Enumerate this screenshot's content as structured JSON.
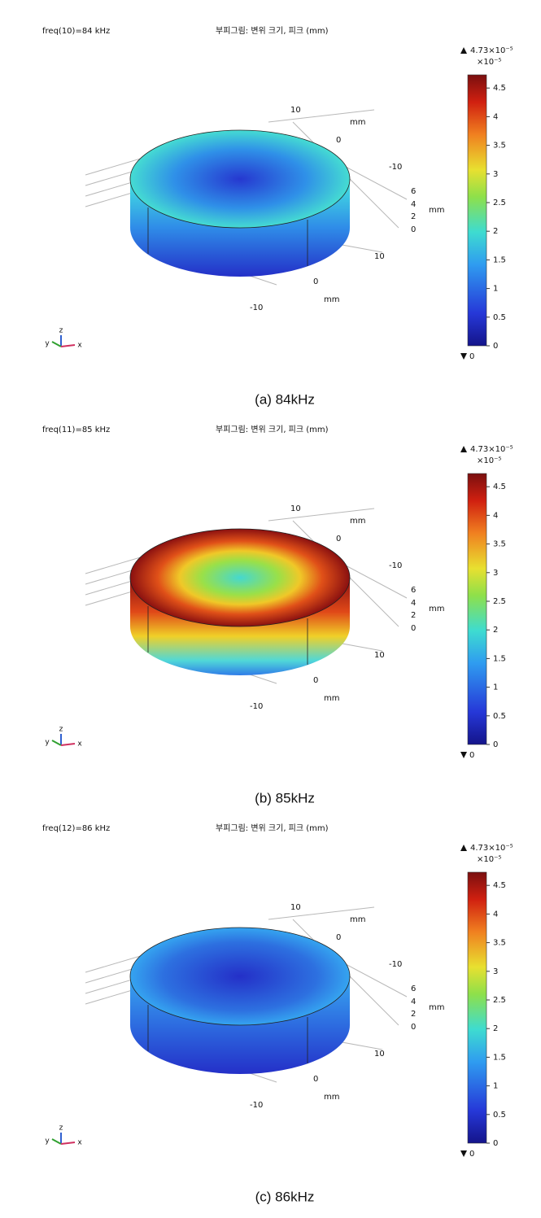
{
  "panels": [
    {
      "label": "freq(10)=84 kHz",
      "title": "부피그림: 변위 크기, 피크 (mm)",
      "max": "4.73×10⁻⁵",
      "scale": "×10⁻⁵",
      "min": "0",
      "colorbar_lim": [
        0,
        4.73
      ],
      "colorbar_ticks": [
        0,
        0.5,
        1,
        1.5,
        2,
        2.5,
        3,
        3.5,
        4,
        4.5
      ],
      "axis_labels": [
        "10",
        "mm",
        "0",
        "-10",
        "6",
        "4",
        "2",
        "0",
        "mm",
        "10",
        "0",
        "mm",
        "-10"
      ],
      "triad": [
        "y",
        "z",
        "x"
      ],
      "caption": "(a) 84kHz"
    },
    {
      "label": "freq(11)=85 kHz",
      "title": "부피그림: 변위 크기, 피크 (mm)",
      "max": "4.73×10⁻⁵",
      "scale": "×10⁻⁵",
      "min": "0",
      "colorbar_lim": [
        0,
        4.73
      ],
      "colorbar_ticks": [
        0,
        0.5,
        1,
        1.5,
        2,
        2.5,
        3,
        3.5,
        4,
        4.5
      ],
      "axis_labels": [
        "10",
        "mm",
        "0",
        "-10",
        "6",
        "4",
        "2",
        "0",
        "mm",
        "10",
        "0",
        "mm",
        "-10"
      ],
      "triad": [
        "y",
        "z",
        "x"
      ],
      "caption": "(b) 85kHz"
    },
    {
      "label": "freq(12)=86 kHz",
      "title": "부피그림: 변위 크기, 피크 (mm)",
      "max": "4.73×10⁻⁵",
      "scale": "×10⁻⁵",
      "min": "0",
      "colorbar_lim": [
        0,
        4.73
      ],
      "colorbar_ticks": [
        0,
        0.5,
        1,
        1.5,
        2,
        2.5,
        3,
        3.5,
        4,
        4.5
      ],
      "axis_labels": [
        "10",
        "mm",
        "0",
        "-10",
        "6",
        "4",
        "2",
        "0",
        "mm",
        "10",
        "0",
        "mm",
        "-10"
      ],
      "triad": [
        "y",
        "z",
        "x"
      ],
      "caption": "(c) 86kHz"
    }
  ]
}
